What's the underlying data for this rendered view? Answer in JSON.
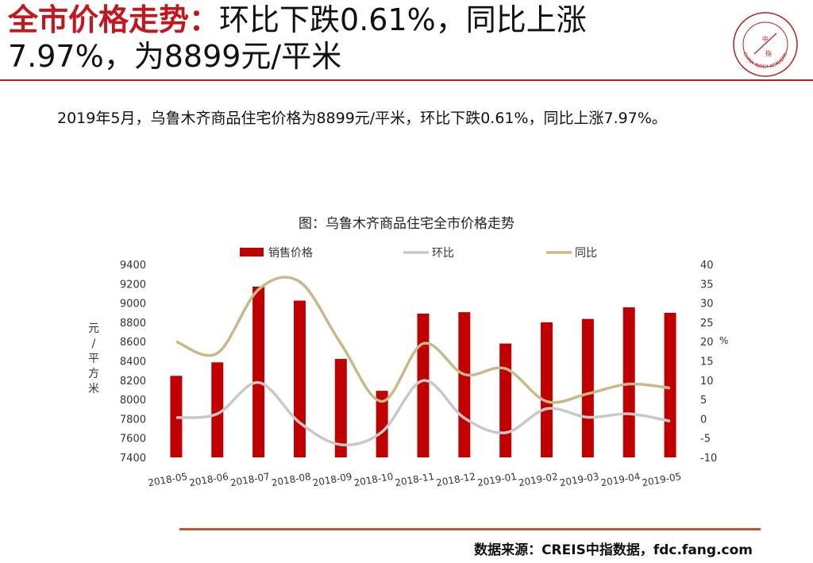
{
  "header": {
    "title_red": "全市价格走势：",
    "title_line1_rest": "环比下跌0.61%，同比上涨",
    "title_line2": "7.97%，为8899元/平米"
  },
  "summary": "2019年5月，乌鲁木齐商品住宅价格为8899元/平米，环比下跌0.61%，同比上涨7.97%。",
  "source": "数据来源：CREIS中指数据，fdc.fang.com",
  "logo": {
    "center_text_top": "中",
    "center_text_bottom": "指",
    "ring_text": "CHINA INDEX ACADEMY"
  },
  "colors": {
    "accent": "#c4161c",
    "bar": "#c00000",
    "mom": "#c8c8c8",
    "yoy": "#c8b98c",
    "footer_rule": "#c0572f"
  },
  "chart_data": {
    "type": "bar",
    "title": "图：乌鲁木齐商品住宅全市价格走势",
    "categories": [
      "2018-05",
      "2018-06",
      "2018-07",
      "2018-08",
      "2018-09",
      "2018-10",
      "2018-11",
      "2018-12",
      "2019-01",
      "2019-02",
      "2019-03",
      "2019-04",
      "2019-05"
    ],
    "y_left": {
      "min": 7400,
      "max": 9400,
      "step": 200,
      "label": "元/平方米",
      "ticks": [
        "9400",
        "9200",
        "9000",
        "8800",
        "8600",
        "8400",
        "8200",
        "8000",
        "7800",
        "7600",
        "7400"
      ]
    },
    "y_right": {
      "min": -10,
      "max": 40,
      "step": 5,
      "label": "%",
      "ticks": [
        "40",
        "35",
        "30",
        "25",
        "20",
        "15",
        "10",
        "5",
        "0",
        "-5",
        "-10"
      ]
    },
    "legend_position": "top",
    "grid": false,
    "series": [
      {
        "name": "销售价格",
        "type": "bar",
        "axis": "left",
        "values": [
          8245,
          8385,
          9170,
          9025,
          8420,
          8090,
          8890,
          8905,
          8580,
          8800,
          8835,
          8955,
          8899
        ]
      },
      {
        "name": "环比",
        "type": "line",
        "axis": "right",
        "values": [
          0.3,
          1.3,
          9.4,
          -1.0,
          -6.7,
          -3.4,
          9.9,
          0.2,
          -3.6,
          2.6,
          0.4,
          1.3,
          -0.61
        ]
      },
      {
        "name": "同比",
        "type": "line",
        "axis": "right",
        "values": [
          20,
          17,
          33.5,
          35.5,
          19.5,
          4.5,
          19.5,
          11.5,
          13,
          4.5,
          6.5,
          9,
          7.97
        ]
      }
    ]
  }
}
